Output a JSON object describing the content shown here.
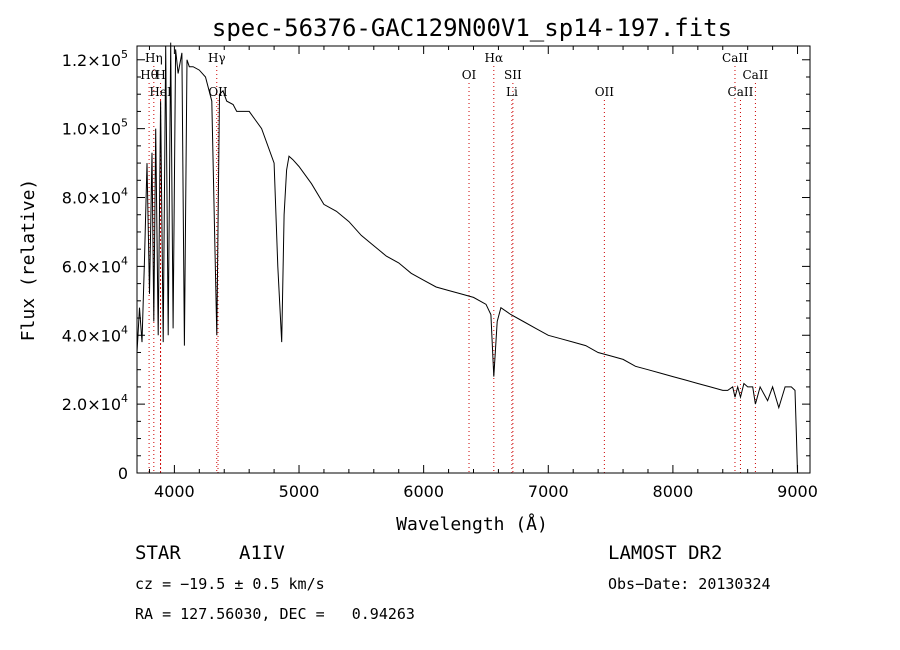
{
  "chart_data": {
    "type": "line",
    "title": "spec-56376-GAC129N00V1_sp14-197.fits",
    "xlabel": "Wavelength (Å)",
    "ylabel": "Flux (relative)",
    "xlim": [
      3700,
      9100
    ],
    "ylim": [
      0,
      124000
    ],
    "x_ticks": [
      4000,
      5000,
      6000,
      7000,
      8000,
      9000
    ],
    "x_tick_labels": [
      "4000",
      "5000",
      "6000",
      "7000",
      "8000",
      "9000"
    ],
    "y_ticks": [
      0,
      20000,
      40000,
      60000,
      80000,
      100000,
      120000
    ],
    "y_tick_labels": [
      {
        "mant": "0",
        "exp": ""
      },
      {
        "mant": "2.0×10",
        "exp": "4"
      },
      {
        "mant": "4.0×10",
        "exp": "4"
      },
      {
        "mant": "6.0×10",
        "exp": "4"
      },
      {
        "mant": "8.0×10",
        "exp": "4"
      },
      {
        "mant": "1.0×10",
        "exp": "5"
      },
      {
        "mant": "1.2×10",
        "exp": "5"
      }
    ],
    "series": [
      {
        "x": [
          3700,
          3720,
          3740,
          3760,
          3780,
          3800,
          3820,
          3835,
          3850,
          3870,
          3889,
          3910,
          3930,
          3950,
          3970,
          3990,
          4010,
          4030,
          4060,
          4080,
          4101,
          4120,
          4150,
          4200,
          4250,
          4300,
          4340,
          4362,
          4390,
          4420,
          4471,
          4500,
          4600,
          4700,
          4800,
          4830,
          4861,
          4880,
          4900,
          4920,
          4950,
          5000,
          5100,
          5200,
          5300,
          5400,
          5500,
          5600,
          5700,
          5800,
          5900,
          6000,
          6100,
          6200,
          6300,
          6400,
          6500,
          6540,
          6563,
          6590,
          6620,
          6700,
          6800,
          6900,
          7000,
          7100,
          7200,
          7300,
          7400,
          7500,
          7600,
          7700,
          7800,
          7900,
          8000,
          8100,
          8200,
          8300,
          8400,
          8440,
          8480,
          8498,
          8520,
          8542,
          8570,
          8600,
          8640,
          8662,
          8700,
          8760,
          8800,
          8850,
          8900,
          8950,
          8980,
          8990,
          9000
        ],
        "y": [
          35000,
          48000,
          38000,
          62000,
          90000,
          52000,
          93000,
          44000,
          100000,
          40000,
          108000,
          38000,
          124000,
          40000,
          125000,
          42000,
          123000,
          116000,
          122000,
          37000,
          120000,
          118000,
          118000,
          117000,
          115000,
          108000,
          40000,
          110000,
          111000,
          108000,
          107000,
          105000,
          105000,
          100000,
          90000,
          60000,
          38000,
          75000,
          88000,
          92000,
          91000,
          89000,
          84000,
          78000,
          76000,
          73000,
          69000,
          66000,
          63000,
          61000,
          58000,
          56000,
          54000,
          53000,
          52000,
          51000,
          49000,
          46000,
          28000,
          44000,
          48000,
          46000,
          44000,
          42000,
          40000,
          39000,
          38000,
          37000,
          35000,
          34000,
          33000,
          31000,
          30000,
          29000,
          28000,
          27000,
          26000,
          25000,
          24000,
          24000,
          25000,
          22000,
          25000,
          22000,
          26000,
          25000,
          25000,
          20000,
          25000,
          21000,
          25000,
          19000,
          25000,
          25000,
          24000,
          12000,
          0
        ]
      }
    ],
    "line_markers": [
      {
        "name": "Hη",
        "x": 3835,
        "row": 0
      },
      {
        "name": "Hθ",
        "x": 3797,
        "row": 1
      },
      {
        "name": "H",
        "x": 3889,
        "row": 1
      },
      {
        "name": "HeI",
        "x": 3889,
        "row": 2
      },
      {
        "name": "Hγ",
        "x": 4340,
        "row": 0
      },
      {
        "name": "OII",
        "x": 4350,
        "row": 2
      },
      {
        "name": "OI",
        "x": 6364,
        "row": 1
      },
      {
        "name": "Hα",
        "x": 6563,
        "row": 0
      },
      {
        "name": "SII",
        "x": 6716,
        "row": 1
      },
      {
        "name": "Li",
        "x": 6708,
        "row": 2
      },
      {
        "name": "OII",
        "x": 7450,
        "row": 2
      },
      {
        "name": "CaII",
        "x": 8498,
        "row": 0
      },
      {
        "name": "CaII",
        "x": 8662,
        "row": 1
      },
      {
        "name": "CaII",
        "x": 8542,
        "row": 2
      }
    ],
    "marker_color": "#cc0000",
    "line_color": "#000000",
    "grid": false
  },
  "info": {
    "object_type": "STAR",
    "subclass": "A1IV",
    "survey": "LAMOST DR2",
    "redshift": "cz = −19.5 ± 0.5 km/s",
    "obs_date": "Obs−Date: 20130324",
    "coords": "RA = 127.56030, DEC =   0.94263"
  }
}
